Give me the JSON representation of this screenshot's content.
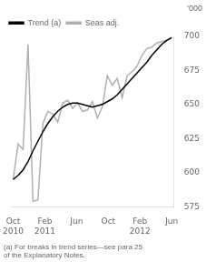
{
  "chart_data": {
    "type": "line",
    "ylabel": "'000",
    "footnote": "(a) For breaks in trend series—see para 25\nof the Explanatory Notes.",
    "x": [
      0,
      0.625,
      1.25,
      1.875,
      2.5,
      3.125,
      3.75,
      4.375,
      5,
      5.625,
      6.25,
      6.875,
      7.5,
      8.125,
      8.75,
      9.375,
      10,
      10.625,
      11.25,
      11.875,
      12.5,
      13.125,
      13.75,
      14.375,
      15,
      15.625,
      16.25,
      16.875,
      17.5,
      18.125,
      18.75,
      19.375,
      20
    ],
    "series": [
      {
        "name": "Trend (a)",
        "color": "#000000",
        "values": [
          595,
          598,
          602,
          608,
          616,
          623,
          630,
          636,
          641,
          645,
          648,
          650,
          651,
          651,
          650,
          649,
          648,
          649,
          650,
          652,
          654,
          657,
          661,
          665,
          669,
          673,
          677,
          681,
          686,
          690,
          694,
          697,
          699
        ]
      },
      {
        "name": "Seas adj.",
        "color": "#b0b0b0",
        "values": [
          595,
          621,
          617,
          694,
          579,
          580,
          636,
          645,
          643,
          637,
          651,
          653,
          647,
          651,
          645,
          646,
          652,
          640,
          648,
          671,
          664,
          669,
          655,
          671,
          674,
          678,
          686,
          691,
          692,
          695,
          696,
          697,
          699
        ]
      }
    ],
    "xlim": [
      -0.3,
      20.3
    ],
    "xticks": [
      {
        "value": 0,
        "label": "Oct\n2010"
      },
      {
        "value": 4,
        "label": "Feb\n2011"
      },
      {
        "value": 8,
        "label": "Jun"
      },
      {
        "value": 12,
        "label": "Oct"
      },
      {
        "value": 16,
        "label": "Feb\n2012"
      },
      {
        "value": 20,
        "label": "Jun"
      }
    ],
    "ylim": [
      575,
      700
    ],
    "yticks": [
      575,
      600,
      625,
      650,
      675,
      700
    ],
    "grid": false,
    "legend": "upper left"
  }
}
